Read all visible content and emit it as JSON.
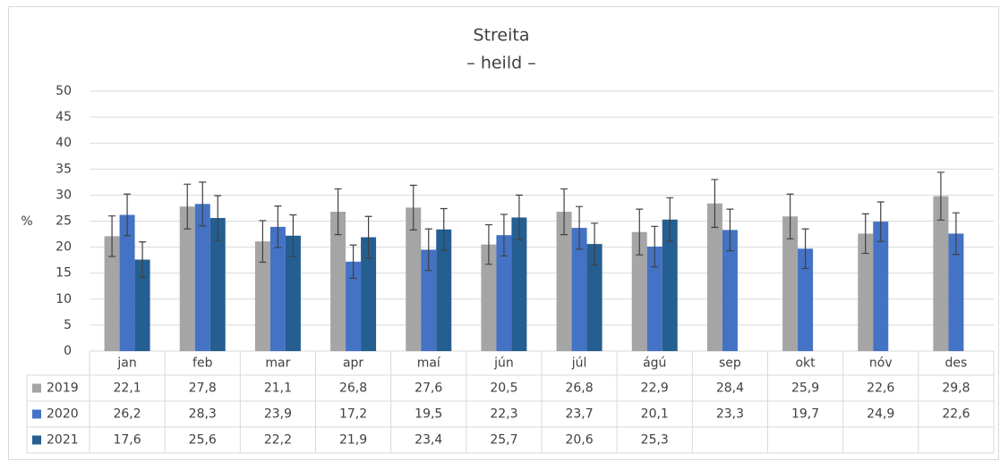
{
  "chart_data": {
    "type": "bar",
    "title": "Streita",
    "subtitle": "– heild –",
    "y_label": "%",
    "categories": [
      "jan",
      "feb",
      "mar",
      "apr",
      "maí",
      "jún",
      "júl",
      "ágú",
      "sep",
      "okt",
      "nóv",
      "des"
    ],
    "ylim": [
      0,
      50
    ],
    "yticks": [
      0,
      5,
      10,
      15,
      20,
      25,
      30,
      35,
      40,
      45,
      50
    ],
    "grid": true,
    "series": [
      {
        "name": "2019",
        "color": "#a5a5a5",
        "values": [
          22.1,
          27.8,
          21.1,
          26.8,
          27.6,
          20.5,
          26.8,
          22.9,
          28.4,
          25.9,
          22.6,
          29.8
        ],
        "value_labels": [
          "22,1",
          "27,8",
          "21,1",
          "26,8",
          "27,6",
          "20,5",
          "26,8",
          "22,9",
          "28,4",
          "25,9",
          "22,6",
          "29,8"
        ],
        "errors": [
          3.9,
          4.3,
          4.0,
          4.4,
          4.3,
          3.8,
          4.4,
          4.4,
          4.6,
          4.3,
          3.8,
          4.6
        ]
      },
      {
        "name": "2020",
        "color": "#4472c4",
        "values": [
          26.2,
          28.3,
          23.9,
          17.2,
          19.5,
          22.3,
          23.7,
          20.1,
          23.3,
          19.7,
          24.9,
          22.6
        ],
        "value_labels": [
          "26,2",
          "28,3",
          "23,9",
          "17,2",
          "19,5",
          "22,3",
          "23,7",
          "20,1",
          "23,3",
          "19,7",
          "24,9",
          "22,6"
        ],
        "errors": [
          4.0,
          4.2,
          4.0,
          3.2,
          4.0,
          4.0,
          4.1,
          3.9,
          4.0,
          3.8,
          3.8,
          4.0
        ]
      },
      {
        "name": "2021",
        "color": "#255e91",
        "values": [
          17.6,
          25.6,
          22.2,
          21.9,
          23.4,
          25.7,
          20.6,
          25.3,
          null,
          null,
          null,
          null
        ],
        "value_labels": [
          "17,6",
          "25,6",
          "22,2",
          "21,9",
          "23,4",
          "25,7",
          "20,6",
          "25,3",
          null,
          null,
          null,
          null
        ],
        "errors": [
          3.4,
          4.3,
          4.0,
          4.0,
          4.0,
          4.3,
          4.0,
          4.2,
          null,
          null,
          null,
          null
        ]
      }
    ]
  }
}
